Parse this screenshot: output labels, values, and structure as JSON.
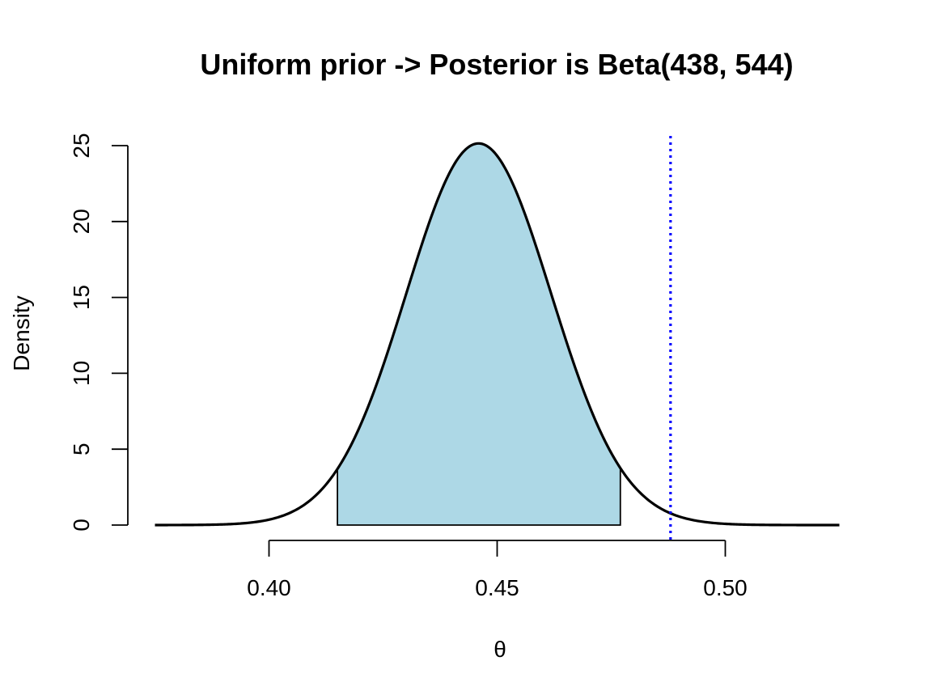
{
  "chart_data": {
    "type": "area",
    "title": "Uniform prior -> Posterior is Beta(438, 544)",
    "xlabel": "θ",
    "ylabel": "Density",
    "distribution": {
      "family": "Beta",
      "alpha": 438,
      "beta": 544
    },
    "xlim": [
      0.375,
      0.525
    ],
    "ylim": [
      0,
      25
    ],
    "x_ticks": [
      {
        "value": 0.4,
        "label": "0.40"
      },
      {
        "value": 0.45,
        "label": "0.45"
      },
      {
        "value": 0.5,
        "label": "0.50"
      }
    ],
    "y_ticks": [
      {
        "value": 0,
        "label": "0"
      },
      {
        "value": 5,
        "label": "5"
      },
      {
        "value": 10,
        "label": "10"
      },
      {
        "value": 15,
        "label": "15"
      },
      {
        "value": 20,
        "label": "20"
      },
      {
        "value": 25,
        "label": "25"
      }
    ],
    "shaded_interval": {
      "lower": 0.415,
      "upper": 0.477,
      "fill_color": "#add8e6"
    },
    "reference_line": {
      "x": 0.488,
      "color": "#0000ff",
      "style": "dotted"
    },
    "curve_color": "#000000",
    "grid": false
  }
}
